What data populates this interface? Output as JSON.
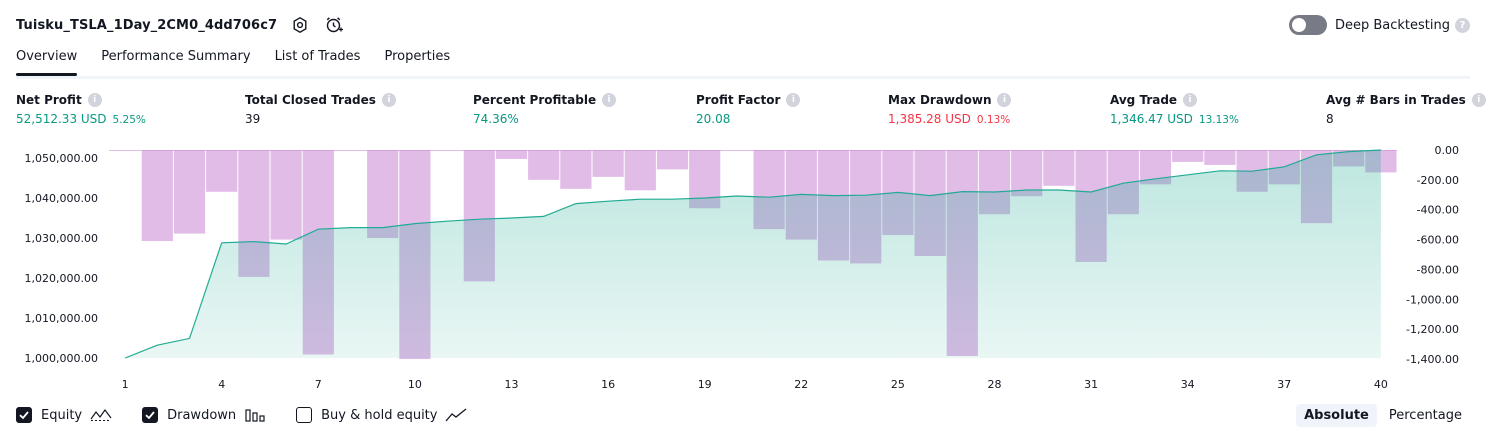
{
  "header": {
    "title": "Tuisku_TSLA_1Day_2CM0_4dd706c7",
    "deep_backtesting_label": "Deep Backtesting",
    "deep_backtesting_enabled": false,
    "help_glyph": "?"
  },
  "tabs": [
    {
      "label": "Overview",
      "active": true
    },
    {
      "label": "Performance Summary",
      "active": false
    },
    {
      "label": "List of Trades",
      "active": false
    },
    {
      "label": "Properties",
      "active": false
    }
  ],
  "metrics": [
    {
      "label": "Net Profit",
      "value": "52,512.33 USD",
      "pct": "5.25%",
      "color": "#089981"
    },
    {
      "label": "Total Closed Trades",
      "value": "39",
      "pct": "",
      "color": "#131722"
    },
    {
      "label": "Percent Profitable",
      "value": "74.36%",
      "pct": "",
      "color": "#089981"
    },
    {
      "label": "Profit Factor",
      "value": "20.08",
      "pct": "",
      "color": "#089981"
    },
    {
      "label": "Max Drawdown",
      "value": "1,385.28 USD",
      "pct": "0.13%",
      "color": "#f23645"
    },
    {
      "label": "Avg Trade",
      "value": "1,346.47 USD",
      "pct": "13.13%",
      "color": "#089981"
    },
    {
      "label": "Avg # Bars in Trades",
      "value": "8",
      "pct": "",
      "color": "#131722"
    }
  ],
  "info_glyph": "i",
  "chart_data": {
    "type": "area",
    "x": [
      1,
      2,
      3,
      4,
      5,
      6,
      7,
      8,
      9,
      10,
      11,
      12,
      13,
      14,
      15,
      16,
      17,
      18,
      19,
      20,
      21,
      22,
      23,
      24,
      25,
      26,
      27,
      28,
      29,
      30,
      31,
      32,
      33,
      34,
      35,
      36,
      37,
      38,
      39,
      40
    ],
    "x_ticks": [
      "1",
      "4",
      "7",
      "10",
      "13",
      "16",
      "19",
      "22",
      "25",
      "28",
      "31",
      "34",
      "37",
      "40"
    ],
    "left_axis": {
      "ticks": [
        "1,050,000.00",
        "1,040,000.00",
        "1,030,000.00",
        "1,020,000.00",
        "1,010,000.00",
        "1,000,000.00"
      ],
      "ylim": [
        1000000,
        1052000
      ]
    },
    "right_axis": {
      "ticks": [
        "0.00",
        "-200.00",
        "-400.00",
        "-600.00",
        "-800.00",
        "-1,000.00",
        "-1,200.00",
        "-1,400.00"
      ],
      "ylim": [
        -1400,
        0
      ]
    },
    "series": [
      {
        "name": "Equity",
        "axis": "left",
        "color": "#22ab94",
        "values": [
          1000000,
          1003200,
          1004900,
          1028800,
          1029100,
          1028500,
          1032200,
          1032600,
          1032600,
          1033600,
          1034200,
          1034700,
          1035000,
          1035400,
          1038600,
          1039200,
          1039700,
          1039700,
          1040000,
          1040500,
          1040200,
          1040900,
          1040600,
          1040700,
          1041400,
          1040600,
          1041600,
          1041500,
          1042000,
          1042000,
          1041500,
          1043700,
          1044800,
          1045800,
          1046800,
          1046700,
          1047800,
          1050800,
          1051600,
          1052000
        ]
      },
      {
        "name": "Drawdown",
        "axis": "right",
        "color": "#ce93d8",
        "values": [
          0,
          -610,
          -560,
          -280,
          -850,
          -600,
          -1370,
          0,
          -590,
          -1400,
          0,
          -880,
          -60,
          -200,
          -260,
          -180,
          -270,
          -130,
          -390,
          0,
          -530,
          -600,
          -740,
          -760,
          -570,
          -710,
          -1380,
          -430,
          -310,
          -240,
          -750,
          -430,
          -230,
          -80,
          -100,
          -280,
          -230,
          -490,
          -110,
          -150
        ]
      }
    ]
  },
  "footer": {
    "equity_label": "Equity",
    "drawdown_label": "Drawdown",
    "buyhold_label": "Buy & hold equity",
    "equity_checked": true,
    "drawdown_checked": true,
    "buyhold_checked": false,
    "absolute_label": "Absolute",
    "percentage_label": "Percentage"
  }
}
